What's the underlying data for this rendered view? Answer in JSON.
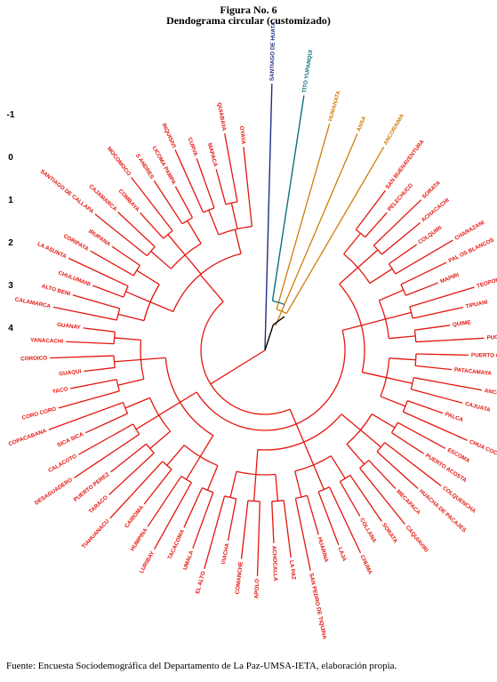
{
  "figure": {
    "number": "Figura No. 6",
    "title": "Dendograma circular (customizado)"
  },
  "axis_ticks": [
    "-1",
    "0",
    "1",
    "2",
    "3",
    "4"
  ],
  "colors": {
    "red": "#e4160e",
    "navy": "#1f2e86",
    "teal": "#0f6e7a",
    "orange": "#cf7e0b",
    "black": "#000000"
  },
  "leaves": [
    {
      "label": "SANTIAGO DE HUATA",
      "cluster": "navy"
    },
    {
      "label": "TITO YUPANQUI",
      "cluster": "teal"
    },
    {
      "label": "HUMANATA",
      "cluster": "orange"
    },
    {
      "label": "ANSA",
      "cluster": "orange"
    },
    {
      "label": "ANCORAIMA",
      "cluster": "orange"
    },
    {
      "label": "SAN BUENAVENTURA",
      "cluster": "red"
    },
    {
      "label": "PELECHUCO",
      "cluster": "red"
    },
    {
      "label": "SORATA",
      "cluster": "red"
    },
    {
      "label": "ACHACACHI",
      "cluster": "red"
    },
    {
      "label": "COLQUIRI",
      "cluster": "red"
    },
    {
      "label": "CHARAZANI",
      "cluster": "red"
    },
    {
      "label": "PAL OS BLANCOS",
      "cluster": "red"
    },
    {
      "label": "MAPIRI",
      "cluster": "red"
    },
    {
      "label": "TEOPONTE",
      "cluster": "red"
    },
    {
      "label": "TIPUANI",
      "cluster": "red"
    },
    {
      "label": "QUIME",
      "cluster": "red"
    },
    {
      "label": "PUCARANI",
      "cluster": "red"
    },
    {
      "label": "PUERTO CARABUCO",
      "cluster": "red"
    },
    {
      "label": "PATACAMAYA",
      "cluster": "red"
    },
    {
      "label": "ANCORAIMES",
      "cluster": "red"
    },
    {
      "label": "CAJUATA",
      "cluster": "red"
    },
    {
      "label": "PALCA",
      "cluster": "red"
    },
    {
      "label": "CHUA COCANI",
      "cluster": "red"
    },
    {
      "label": "ESCOMA",
      "cluster": "red"
    },
    {
      "label": "PUERTO ACOSTA",
      "cluster": "red"
    },
    {
      "label": "COLQUENCHA",
      "cluster": "red"
    },
    {
      "label": "HUACHA DE PACAJES",
      "cluster": "red"
    },
    {
      "label": "MECAPACA",
      "cluster": "red"
    },
    {
      "label": "CAQUIAVIRI",
      "cluster": "red"
    },
    {
      "label": "SORATA",
      "cluster": "red"
    },
    {
      "label": "COLLANA",
      "cluster": "red"
    },
    {
      "label": "CHUMA",
      "cluster": "red"
    },
    {
      "label": "LAJA",
      "cluster": "red"
    },
    {
      "label": "HUARINA",
      "cluster": "red"
    },
    {
      "label": "SAN PEDRO DE TIQUINA",
      "cluster": "red"
    },
    {
      "label": "LA PAZ",
      "cluster": "red"
    },
    {
      "label": "ACHOCALLA",
      "cluster": "red"
    },
    {
      "label": "APOLO",
      "cluster": "red"
    },
    {
      "label": "COMANCHE",
      "cluster": "red"
    },
    {
      "label": "VIACHA",
      "cluster": "red"
    },
    {
      "label": "EL ALTO",
      "cluster": "red"
    },
    {
      "label": "UMALA",
      "cluster": "red"
    },
    {
      "label": "TACACOMA",
      "cluster": "red"
    },
    {
      "label": "LURIBAY",
      "cluster": "red"
    },
    {
      "label": "HUMPINA",
      "cluster": "red"
    },
    {
      "label": "CAIROMA",
      "cluster": "red"
    },
    {
      "label": "TIAHUANACU",
      "cluster": "red"
    },
    {
      "label": "TARACO",
      "cluster": "red"
    },
    {
      "label": "PUERTO PEREZ",
      "cluster": "red"
    },
    {
      "label": "DESAGUADERO",
      "cluster": "red"
    },
    {
      "label": "CALACOTO",
      "cluster": "red"
    },
    {
      "label": "SICA SICA",
      "cluster": "red"
    },
    {
      "label": "COPACABANA",
      "cluster": "red"
    },
    {
      "label": "CORO CORO",
      "cluster": "red"
    },
    {
      "label": "YACO",
      "cluster": "red"
    },
    {
      "label": "GUAQUI",
      "cluster": "red"
    },
    {
      "label": "COROICO",
      "cluster": "red"
    },
    {
      "label": "YANACACHI",
      "cluster": "red"
    },
    {
      "label": "GUANAY",
      "cluster": "red"
    },
    {
      "label": "CALAMARCA",
      "cluster": "red"
    },
    {
      "label": "ALTO BENI",
      "cluster": "red"
    },
    {
      "label": "CHULUMANI",
      "cluster": "red"
    },
    {
      "label": "LA ASUNTA",
      "cluster": "red"
    },
    {
      "label": "CORIPATA",
      "cluster": "red"
    },
    {
      "label": "IRUPANA",
      "cluster": "red"
    },
    {
      "label": "SANTIAGO DE CALLAPA",
      "cluster": "red"
    },
    {
      "label": "CAJAMARCA",
      "cluster": "red"
    },
    {
      "label": "COMBAYA",
      "cluster": "red"
    },
    {
      "label": "MOCOMOCO",
      "cluster": "red"
    },
    {
      "label": "S ANDRES",
      "cluster": "red"
    },
    {
      "label": "LICOMA PAMPA",
      "cluster": "red"
    },
    {
      "label": "INQUISIVI",
      "cluster": "red"
    },
    {
      "label": "CURVA",
      "cluster": "red"
    },
    {
      "label": "MAPACA",
      "cluster": "red"
    },
    {
      "label": "QUIABAYA",
      "cluster": "red"
    },
    {
      "label": "OYAYA",
      "cluster": "red"
    }
  ],
  "source": "Fuente: Encuesta Sociodemográfica del Departamento de La Paz-UMSA-IETA, elaboración propia."
}
